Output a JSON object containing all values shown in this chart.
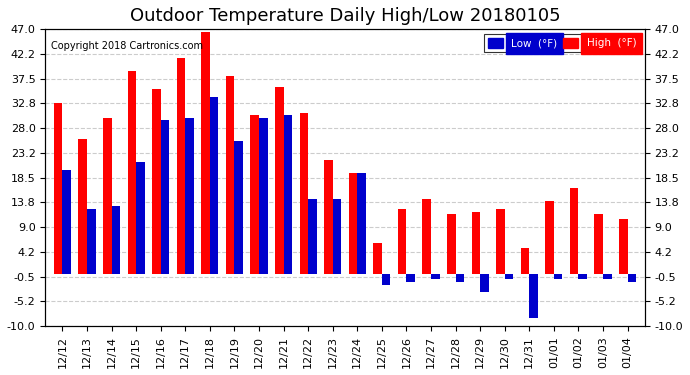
{
  "title": "Outdoor Temperature Daily High/Low 20180105",
  "copyright": "Copyright 2018 Cartronics.com",
  "legend_low": "Low  (°F)",
  "legend_high": "High  (°F)",
  "dates": [
    "12/12",
    "12/13",
    "12/14",
    "12/15",
    "12/16",
    "12/17",
    "12/18",
    "12/19",
    "12/20",
    "12/21",
    "12/22",
    "12/23",
    "12/24",
    "12/25",
    "12/26",
    "12/27",
    "12/28",
    "12/29",
    "12/30",
    "12/31",
    "01/01",
    "01/02",
    "01/03",
    "01/04"
  ],
  "high": [
    32.8,
    26.0,
    30.0,
    39.0,
    35.5,
    41.5,
    46.5,
    38.0,
    30.5,
    36.0,
    31.0,
    22.0,
    19.5,
    6.0,
    12.5,
    14.5,
    11.5,
    12.0,
    12.5,
    5.0,
    14.0,
    16.5,
    11.5,
    10.5
  ],
  "low": [
    20.0,
    12.5,
    13.0,
    21.5,
    29.5,
    30.0,
    34.0,
    25.5,
    30.0,
    30.5,
    14.5,
    14.5,
    19.5,
    -2.0,
    -1.5,
    -1.0,
    -1.5,
    -3.5,
    -1.0,
    -8.5,
    -1.0,
    -1.0,
    -1.0,
    -1.5
  ],
  "high_color": "#ff0000",
  "low_color": "#0000cc",
  "background_color": "#ffffff",
  "plot_bg_color": "#ffffff",
  "grid_color": "#cccccc",
  "ylim": [
    -10.0,
    47.0
  ],
  "yticks": [
    -10.0,
    -5.2,
    -0.5,
    4.2,
    9.0,
    13.8,
    18.5,
    23.2,
    28.0,
    32.8,
    37.5,
    42.2,
    47.0
  ],
  "title_fontsize": 13,
  "tick_fontsize": 8,
  "bar_width": 0.35
}
